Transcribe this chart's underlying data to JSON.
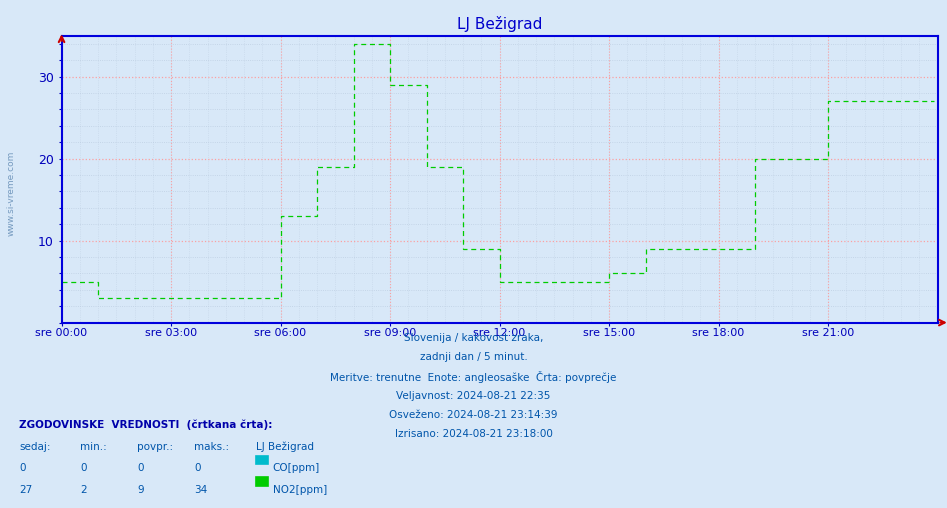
{
  "title": "LJ Bežigrad",
  "title_color": "#0000cc",
  "background_color": "#d8e8f8",
  "plot_bg_color": "#d8e8f8",
  "grid_color_major": "#ff9999",
  "grid_color_minor": "#bbcce0",
  "axis_color": "#0000bb",
  "spine_color": "#0000dd",
  "ylim": [
    0,
    35
  ],
  "yticks": [
    10,
    20,
    30
  ],
  "xlabel_color": "#0000aa",
  "xtick_labels": [
    "sre 00:00",
    "sre 03:00",
    "sre 06:00",
    "sre 09:00",
    "sre 12:00",
    "sre 15:00",
    "sre 18:00",
    "sre 21:00"
  ],
  "xtick_positions": [
    0,
    36,
    72,
    108,
    144,
    180,
    216,
    252
  ],
  "total_points": 288,
  "watermark": "www.si-vreme.com",
  "co_color": "#00bbcc",
  "no2_color": "#00cc00",
  "subtitle_lines": [
    "Slovenija / kakovost zraka,",
    "zadnji dan / 5 minut.",
    "Meritve: trenutne  Enote: angleosaške  Črta: povprečje",
    "Veljavnost: 2024-08-21 22:35",
    "Osveženo: 2024-08-21 23:14:39",
    "Izrisano: 2024-08-21 23:18:00"
  ],
  "subtitle_color": "#0055aa",
  "table_header": "ZGODOVINSKE  VREDNOSTI  (črtkana črta):",
  "table_cols": [
    "sedaj:",
    "min.:",
    "povpr.:",
    "maks.:",
    "LJ Bežigrad"
  ],
  "table_data": [
    [
      0,
      0,
      0,
      0,
      "CO[ppm]"
    ],
    [
      27,
      2,
      9,
      34,
      "NO2[ppm]"
    ]
  ],
  "table_color": "#0000aa",
  "no2_values": [
    5,
    5,
    5,
    5,
    5,
    5,
    5,
    5,
    5,
    5,
    5,
    5,
    3,
    3,
    3,
    3,
    3,
    3,
    3,
    3,
    3,
    3,
    3,
    3,
    3,
    3,
    3,
    3,
    3,
    3,
    3,
    3,
    3,
    3,
    3,
    3,
    3,
    3,
    3,
    3,
    3,
    3,
    3,
    3,
    3,
    3,
    3,
    3,
    3,
    3,
    3,
    3,
    3,
    3,
    3,
    3,
    3,
    3,
    3,
    3,
    3,
    3,
    3,
    3,
    3,
    3,
    3,
    3,
    3,
    3,
    3,
    3,
    13,
    13,
    13,
    13,
    13,
    13,
    13,
    13,
    13,
    13,
    13,
    13,
    19,
    19,
    19,
    19,
    19,
    19,
    19,
    19,
    19,
    19,
    19,
    19,
    34,
    34,
    34,
    34,
    34,
    34,
    34,
    34,
    34,
    34,
    34,
    34,
    29,
    29,
    29,
    29,
    29,
    29,
    29,
    29,
    29,
    29,
    29,
    29,
    19,
    19,
    19,
    19,
    19,
    19,
    19,
    19,
    19,
    19,
    19,
    19,
    9,
    9,
    9,
    9,
    9,
    9,
    9,
    9,
    9,
    9,
    9,
    9,
    5,
    5,
    5,
    5,
    5,
    5,
    5,
    5,
    5,
    5,
    5,
    5,
    5,
    5,
    5,
    5,
    5,
    5,
    5,
    5,
    5,
    5,
    5,
    5,
    5,
    5,
    5,
    5,
    5,
    5,
    5,
    5,
    5,
    5,
    5,
    5,
    6,
    6,
    6,
    6,
    6,
    6,
    6,
    6,
    6,
    6,
    6,
    6,
    9,
    9,
    9,
    9,
    9,
    9,
    9,
    9,
    9,
    9,
    9,
    9,
    9,
    9,
    9,
    9,
    9,
    9,
    9,
    9,
    9,
    9,
    9,
    9,
    9,
    9,
    9,
    9,
    9,
    9,
    9,
    9,
    9,
    9,
    9,
    9,
    20,
    20,
    20,
    20,
    20,
    20,
    20,
    20,
    20,
    20,
    20,
    20,
    20,
    20,
    20,
    20,
    20,
    20,
    20,
    20,
    20,
    20,
    20,
    20,
    27,
    27,
    27,
    27,
    27,
    27,
    27,
    27,
    27,
    27,
    27,
    27,
    27,
    27,
    27,
    27,
    27,
    27,
    27,
    27,
    27,
    27,
    27,
    27,
    27,
    27,
    27,
    27,
    27,
    27,
    27,
    27,
    27,
    27,
    27,
    27
  ]
}
